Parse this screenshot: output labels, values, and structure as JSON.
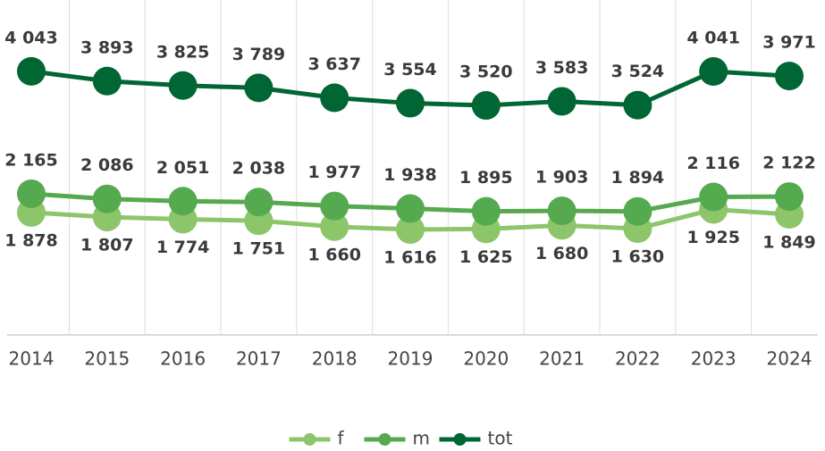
{
  "chart_data": {
    "type": "line",
    "categories": [
      "2014",
      "2015",
      "2016",
      "2017",
      "2018",
      "2019",
      "2020",
      "2021",
      "2022",
      "2023",
      "2024"
    ],
    "ylim": [
      0,
      5000
    ],
    "series": [
      {
        "name": "f",
        "color": "#8dc66a",
        "values": [
          1878,
          1807,
          1774,
          1751,
          1660,
          1616,
          1625,
          1680,
          1630,
          1925,
          1849
        ],
        "value_labels": [
          "1 878",
          "1 807",
          "1 774",
          "1 751",
          "1 660",
          "1 616",
          "1 625",
          "1 680",
          "1 630",
          "1 925",
          "1 849"
        ]
      },
      {
        "name": "m",
        "color": "#55a94f",
        "values": [
          2165,
          2086,
          2051,
          2038,
          1977,
          1938,
          1895,
          1903,
          1894,
          2116,
          2122
        ],
        "value_labels": [
          "2 165",
          "2 086",
          "2 051",
          "2 038",
          "1 977",
          "1 938",
          "1 895",
          "1 903",
          "1 894",
          "2 116",
          "2 122"
        ]
      },
      {
        "name": "tot",
        "color": "#006633",
        "values": [
          4043,
          3893,
          3825,
          3789,
          3637,
          3554,
          3520,
          3583,
          3524,
          4041,
          3971
        ],
        "value_labels": [
          "4 043",
          "3 893",
          "3 825",
          "3 789",
          "3 637",
          "3 554",
          "3 520",
          "3 583",
          "3 524",
          "4 041",
          "3 971"
        ]
      }
    ],
    "legend": "bottom"
  }
}
